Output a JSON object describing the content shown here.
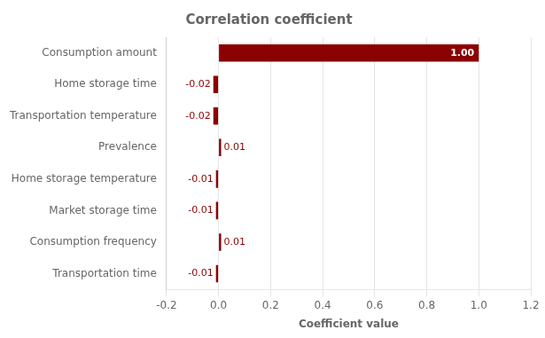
{
  "chart_data": {
    "type": "bar",
    "orientation": "horizontal",
    "title": "Correlation coefficient",
    "xlabel": "Coefficient value",
    "categories": [
      "Transportation time",
      "Consumption frequency",
      "Market storage time",
      "Home storage temperature",
      "Prevalence",
      "Transportation temperature",
      "Home storage time",
      "Consumption amount"
    ],
    "values": [
      -0.01,
      0.01,
      -0.01,
      -0.01,
      0.01,
      -0.02,
      -0.02,
      1.0
    ],
    "value_labels": [
      "-0.01",
      "0.01",
      "-0.01",
      "-0.01",
      "0.01",
      "-0.02",
      "-0.02",
      "1.00"
    ],
    "data_labels": true,
    "color": "#8B0000",
    "xlim": [
      -0.2,
      1.2
    ],
    "xticks": [
      -0.2,
      {
        "value": 0.0,
        "label": "0.0"
      },
      0.2,
      0.4,
      0.6,
      0.8,
      {
        "value": 1.0,
        "label": "1.0"
      },
      1.2
    ],
    "grid": true
  }
}
